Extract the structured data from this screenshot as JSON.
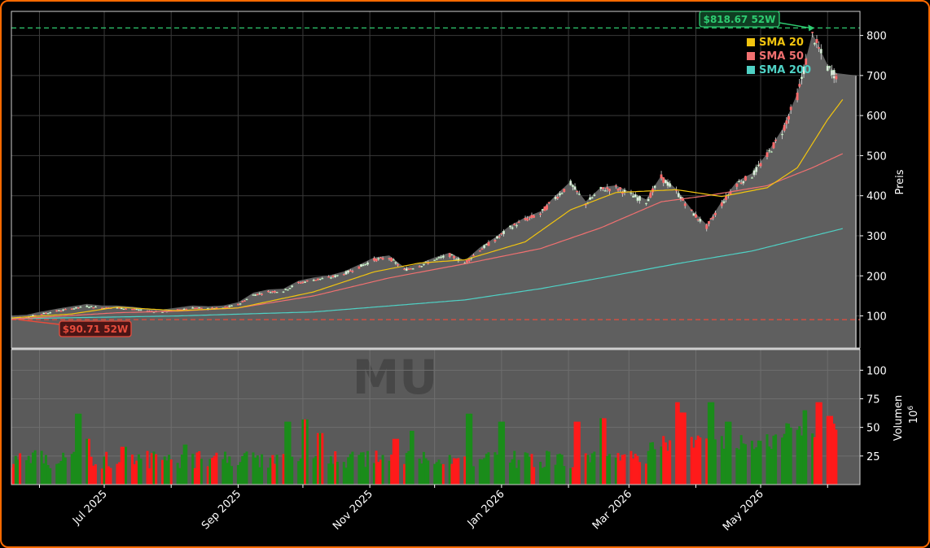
{
  "chart_data": {
    "type": "candlestick",
    "ticker": "MU",
    "watermark": "MU",
    "x_tick_labels": [
      "Jul 2025",
      "Sep 2025",
      "Nov 2025",
      "Jan 2026",
      "Mar 2026",
      "May 2026"
    ],
    "price_panel": {
      "ylabel": "Preis",
      "y_ticks": [
        100,
        200,
        300,
        400,
        500,
        600,
        700,
        800
      ],
      "ylim": [
        20,
        860
      ],
      "grid": true,
      "high_52w": {
        "value": 818.67,
        "label": "$818.67 52W",
        "color": "#2ecc71"
      },
      "low_52w": {
        "value": 90.71,
        "label": "$90.71 52W",
        "color": "#e74c3c"
      },
      "last_price_marker": 700,
      "legend": {
        "position": "top-right",
        "entries": [
          {
            "name": "SMA 20",
            "color": "#f1c40f"
          },
          {
            "name": "SMA 50",
            "color": "#f07070"
          },
          {
            "name": "SMA 200",
            "color": "#4fd1c5"
          }
        ]
      },
      "price_anchors": [
        [
          "2025-05-19",
          95
        ],
        [
          "2025-05-26",
          97
        ],
        [
          "2025-06-02",
          105
        ],
        [
          "2025-06-09",
          112
        ],
        [
          "2025-06-16",
          118
        ],
        [
          "2025-06-23",
          124
        ],
        [
          "2025-06-30",
          120
        ],
        [
          "2025-07-07",
          120
        ],
        [
          "2025-07-14",
          117
        ],
        [
          "2025-07-21",
          112
        ],
        [
          "2025-07-28",
          110
        ],
        [
          "2025-08-04",
          115
        ],
        [
          "2025-08-11",
          120
        ],
        [
          "2025-08-18",
          118
        ],
        [
          "2025-08-25",
          120
        ],
        [
          "2025-09-01",
          128
        ],
        [
          "2025-09-08",
          152
        ],
        [
          "2025-09-15",
          160
        ],
        [
          "2025-09-22",
          162
        ],
        [
          "2025-09-29",
          182
        ],
        [
          "2025-10-06",
          190
        ],
        [
          "2025-10-13",
          195
        ],
        [
          "2025-10-20",
          205
        ],
        [
          "2025-10-27",
          222
        ],
        [
          "2025-11-03",
          240
        ],
        [
          "2025-11-10",
          245
        ],
        [
          "2025-11-17",
          215
        ],
        [
          "2025-11-24",
          225
        ],
        [
          "2025-12-01",
          240
        ],
        [
          "2025-12-08",
          252
        ],
        [
          "2025-12-15",
          232
        ],
        [
          "2025-12-22",
          265
        ],
        [
          "2025-12-29",
          290
        ],
        [
          "2026-01-05",
          320
        ],
        [
          "2026-01-12",
          340
        ],
        [
          "2026-01-19",
          355
        ],
        [
          "2026-01-26",
          395
        ],
        [
          "2026-02-02",
          430
        ],
        [
          "2026-02-09",
          380
        ],
        [
          "2026-02-16",
          415
        ],
        [
          "2026-02-23",
          420
        ],
        [
          "2026-03-02",
          402
        ],
        [
          "2026-03-09",
          385
        ],
        [
          "2026-03-16",
          445
        ],
        [
          "2026-03-23",
          410
        ],
        [
          "2026-03-30",
          360
        ],
        [
          "2026-04-06",
          322
        ],
        [
          "2026-04-13",
          380
        ],
        [
          "2026-04-20",
          430
        ],
        [
          "2026-04-27",
          450
        ],
        [
          "2026-05-04",
          500
        ],
        [
          "2026-05-11",
          560
        ],
        [
          "2026-05-18",
          650
        ],
        [
          "2026-05-25",
          800
        ],
        [
          "2026-06-01",
          720
        ],
        [
          "2026-06-05",
          700
        ]
      ],
      "sma20_anchors": [
        [
          "2025-05-19",
          95
        ],
        [
          "2025-06-16",
          105
        ],
        [
          "2025-07-07",
          122
        ],
        [
          "2025-08-04",
          113
        ],
        [
          "2025-09-01",
          120
        ],
        [
          "2025-10-06",
          160
        ],
        [
          "2025-11-03",
          210
        ],
        [
          "2025-11-24",
          232
        ],
        [
          "2025-12-15",
          240
        ],
        [
          "2026-01-12",
          285
        ],
        [
          "2026-02-02",
          365
        ],
        [
          "2026-02-23",
          408
        ],
        [
          "2026-03-23",
          415
        ],
        [
          "2026-04-13",
          398
        ],
        [
          "2026-05-04",
          420
        ],
        [
          "2026-05-18",
          470
        ],
        [
          "2026-06-01",
          590
        ],
        [
          "2026-06-08",
          640
        ]
      ],
      "sma50_anchors": [
        [
          "2025-05-19",
          92
        ],
        [
          "2025-07-07",
          108
        ],
        [
          "2025-08-04",
          112
        ],
        [
          "2025-09-01",
          120
        ],
        [
          "2025-10-06",
          150
        ],
        [
          "2025-11-10",
          195
        ],
        [
          "2025-12-15",
          230
        ],
        [
          "2026-01-19",
          268
        ],
        [
          "2026-02-16",
          320
        ],
        [
          "2026-03-16",
          385
        ],
        [
          "2026-04-06",
          400
        ],
        [
          "2026-05-04",
          425
        ],
        [
          "2026-05-25",
          470
        ],
        [
          "2026-06-08",
          505
        ]
      ],
      "sma200_anchors": [
        [
          "2025-05-19",
          93
        ],
        [
          "2025-08-04",
          100
        ],
        [
          "2025-10-06",
          110
        ],
        [
          "2025-12-15",
          140
        ],
        [
          "2026-01-19",
          168
        ],
        [
          "2026-02-16",
          195
        ],
        [
          "2026-03-23",
          230
        ],
        [
          "2026-04-27",
          262
        ],
        [
          "2026-05-18",
          290
        ],
        [
          "2026-06-08",
          318
        ]
      ]
    },
    "volume_panel": {
      "ylabel": "Volumen",
      "unit": "10^6",
      "y_ticks": [
        25,
        50,
        75,
        100
      ],
      "ylim": [
        0,
        118
      ],
      "up_color": "#1a8c1a",
      "down_color": "#ff1a1a",
      "base_level": 18,
      "spikes": [
        [
          "2025-06-19",
          62
        ],
        [
          "2025-06-23",
          40
        ],
        [
          "2025-07-10",
          33
        ],
        [
          "2025-08-08",
          35
        ],
        [
          "2025-09-24",
          55
        ],
        [
          "2025-10-02",
          57
        ],
        [
          "2025-10-09",
          45
        ],
        [
          "2025-11-13",
          40
        ],
        [
          "2025-11-21",
          47
        ],
        [
          "2025-12-17",
          62
        ],
        [
          "2026-01-01",
          55
        ],
        [
          "2026-02-05",
          55
        ],
        [
          "2026-02-17",
          58
        ],
        [
          "2026-03-23",
          72
        ],
        [
          "2026-03-26",
          63
        ],
        [
          "2026-04-08",
          72
        ],
        [
          "2026-04-16",
          55
        ],
        [
          "2026-05-22",
          65
        ],
        [
          "2026-05-28",
          72
        ],
        [
          "2026-06-02",
          60
        ],
        [
          "2026-06-04",
          48
        ]
      ]
    }
  }
}
